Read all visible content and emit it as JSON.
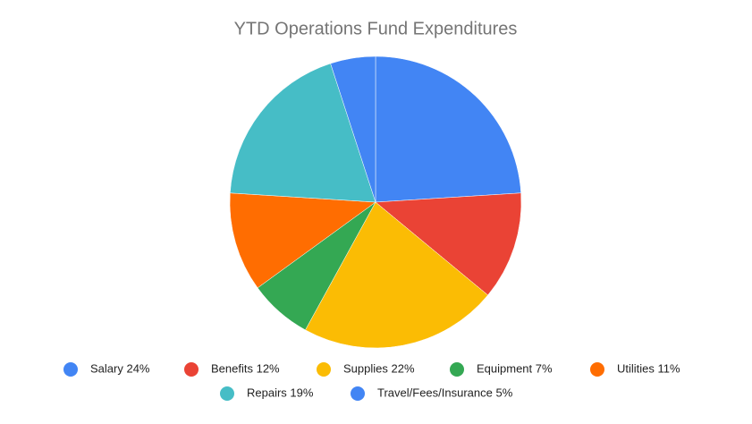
{
  "chart_data": {
    "type": "pie",
    "title": "YTD Operations Fund Expenditures",
    "categories": [
      "Salary 24%",
      "Benefits 12%",
      "Supplies 22%",
      "Equipment 7%",
      "Utilities 11%",
      "Repairs 19%",
      "Travel/Fees/Insurance 5%"
    ],
    "values": [
      24,
      12,
      22,
      7,
      11,
      19,
      5
    ],
    "colors": [
      "#4285f4",
      "#ea4335",
      "#fbbc04",
      "#34a853",
      "#ff6d01",
      "#46bdc6",
      "#4285f4"
    ],
    "legend": "bottom"
  }
}
